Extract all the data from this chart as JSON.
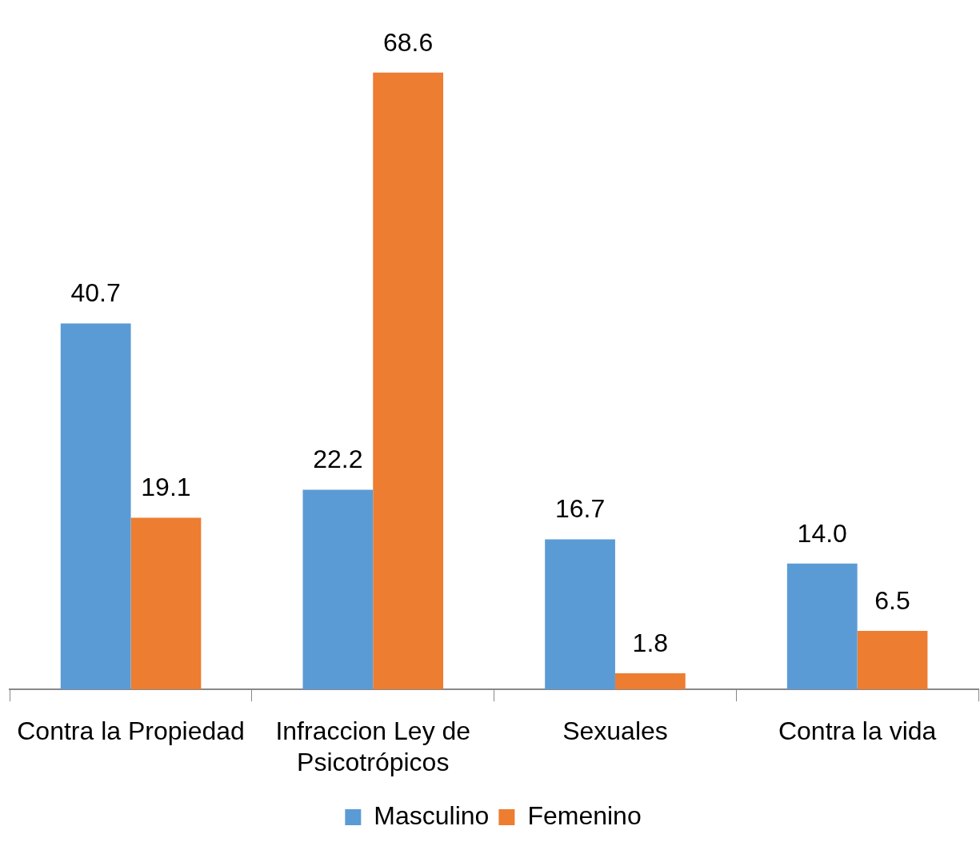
{
  "chart_data": {
    "type": "bar",
    "categories": [
      "Contra la Propiedad",
      "Infraccion Ley de Psicotrópicos",
      "Sexuales",
      "Contra la vida"
    ],
    "series": [
      {
        "name": "Masculino",
        "color": "#5b9bd5",
        "values": [
          40.7,
          22.2,
          16.7,
          14.0
        ],
        "value_labels": [
          "40.7",
          "22.2",
          "16.7",
          "14.0"
        ]
      },
      {
        "name": "Femenino",
        "color": "#ed7d31",
        "values": [
          19.1,
          68.6,
          1.8,
          6.5
        ],
        "value_labels": [
          "19.1",
          "68.6",
          "1.8",
          "6.5"
        ]
      }
    ],
    "legend": "bottom",
    "grid": false
  }
}
